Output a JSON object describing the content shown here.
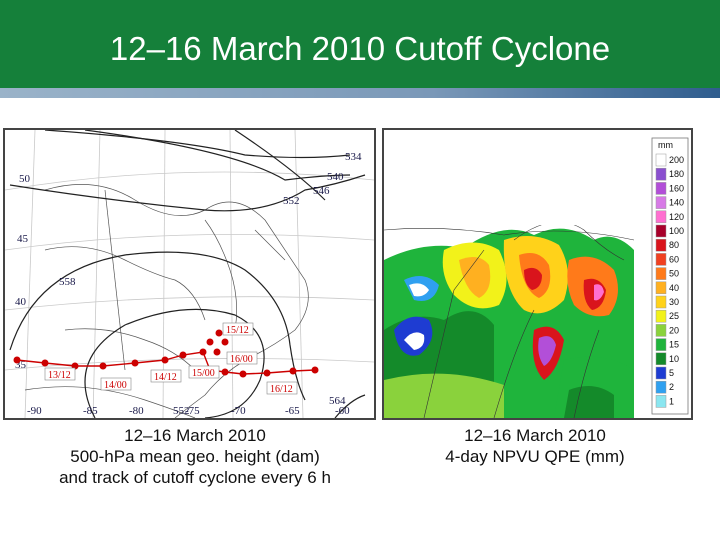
{
  "title": "12–16 March 2010 Cutoff Cyclone",
  "left_panel": {
    "caption": [
      "12–16 March 2010",
      "500-hPa mean geo. height (dam)",
      "and track of cutoff cyclone every 6 h"
    ],
    "lat_labels": [
      "50",
      "45",
      "40",
      "35"
    ],
    "lon_labels": [
      "-90",
      "-85",
      "-80",
      "-75",
      "-70",
      "-65",
      "-60"
    ],
    "contour_labels": [
      "534",
      "540",
      "546",
      "552",
      "558",
      "552",
      "564"
    ],
    "track_labels": [
      "13/12",
      "14/00",
      "14/12",
      "15/00",
      "15/12",
      "16/00",
      "16/12"
    ],
    "track_color": "#cc0000"
  },
  "right_panel": {
    "caption": [
      "12–16 March 2010",
      "4-day NPVU QPE (mm)"
    ],
    "legend_unit": "mm",
    "legend": [
      {
        "label": "200",
        "color": "#ffffff"
      },
      {
        "label": "180",
        "color": "#8a4fcf"
      },
      {
        "label": "160",
        "color": "#b24fd8"
      },
      {
        "label": "140",
        "color": "#d77ae6"
      },
      {
        "label": "120",
        "color": "#ff6fd0"
      },
      {
        "label": "100",
        "color": "#a8002a"
      },
      {
        "label": "80",
        "color": "#d9141c"
      },
      {
        "label": "60",
        "color": "#f04020"
      },
      {
        "label": "50",
        "color": "#ff7a1a"
      },
      {
        "label": "40",
        "color": "#ffb020"
      },
      {
        "label": "30",
        "color": "#ffd21a"
      },
      {
        "label": "25",
        "color": "#f2f21a"
      },
      {
        "label": "20",
        "color": "#8ad23c"
      },
      {
        "label": "15",
        "color": "#1fb43c"
      },
      {
        "label": "10",
        "color": "#148a2a"
      },
      {
        "label": "5",
        "color": "#1e3cd2"
      },
      {
        "label": "2",
        "color": "#2fa0f0"
      },
      {
        "label": "1",
        "color": "#8ae6f0"
      }
    ]
  }
}
